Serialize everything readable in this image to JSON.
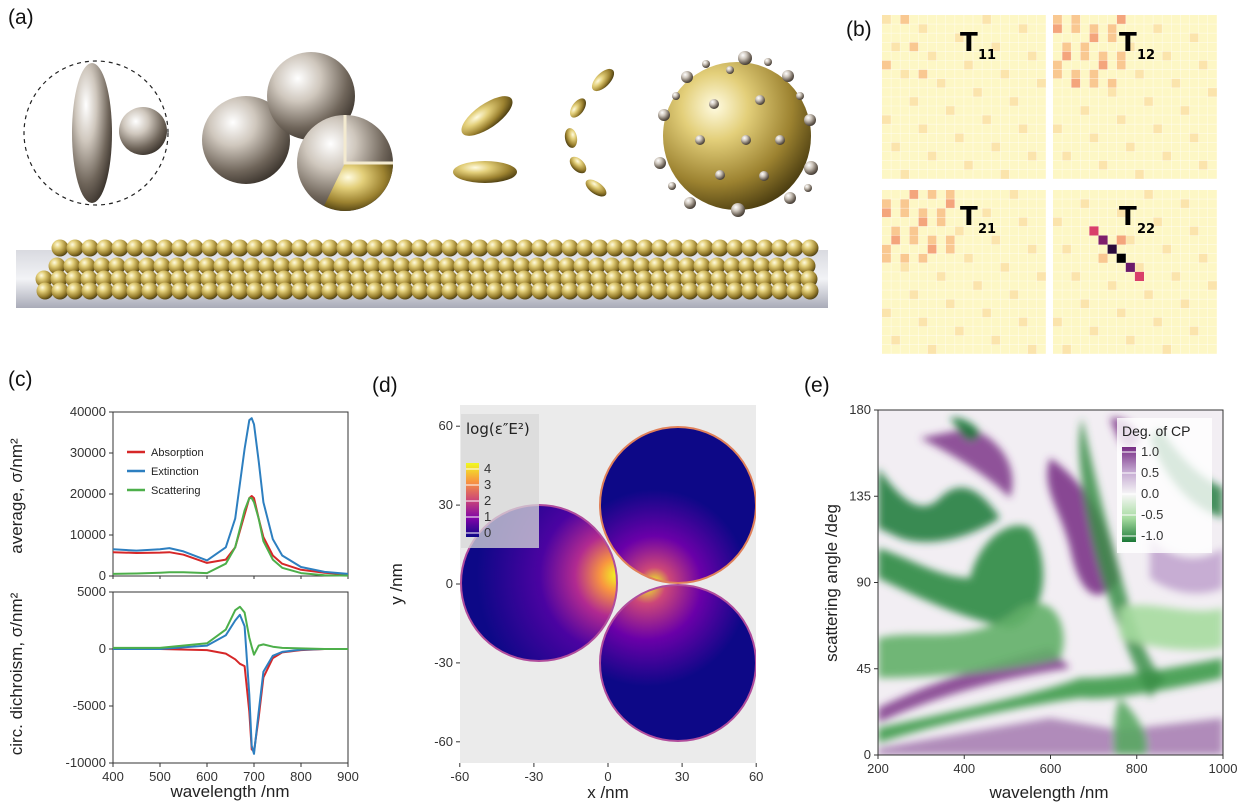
{
  "panels": {
    "a": "(a)",
    "b": "(b)",
    "c": "(c)",
    "d": "(d)",
    "e": "(e)"
  },
  "panel_b": {
    "labels": [
      {
        "main": "T",
        "sub": "11"
      },
      {
        "main": "T",
        "sub": "12"
      },
      {
        "main": "T",
        "sub": "21"
      },
      {
        "main": "T",
        "sub": "22"
      }
    ]
  },
  "chart_data": [
    {
      "type": "line",
      "ylabel": "average, σ/nm²",
      "x": [
        400,
        450,
        500,
        520,
        550,
        600,
        640,
        660,
        680,
        690,
        695,
        700,
        710,
        720,
        740,
        760,
        800,
        850,
        900
      ],
      "series": [
        {
          "name": "Absorption",
          "color": "#d62728",
          "values": [
            5800,
            5600,
            5700,
            5800,
            5200,
            3200,
            4000,
            7000,
            15000,
            19000,
            19500,
            19000,
            14000,
            9500,
            5000,
            3000,
            1500,
            800,
            400
          ]
        },
        {
          "name": "Extinction",
          "color": "#2d7fc0",
          "values": [
            6500,
            6200,
            6500,
            6800,
            6000,
            3800,
            7000,
            14000,
            31000,
            38000,
            38500,
            37000,
            28000,
            18000,
            9000,
            5000,
            2200,
            1000,
            500
          ]
        },
        {
          "name": "Scattering",
          "color": "#4daf4a",
          "values": [
            500,
            600,
            800,
            900,
            900,
            700,
            3000,
            7000,
            16000,
            19000,
            19000,
            18000,
            14000,
            8500,
            4000,
            2000,
            700,
            200,
            100
          ]
        }
      ],
      "ylim": [
        0,
        40000
      ],
      "yticks": [
        "0",
        "10000",
        "20000",
        "30000",
        "40000"
      ],
      "legend": "top-left"
    },
    {
      "type": "line",
      "ylabel": "circ. dichroism,  σ/nm²",
      "xlabel": "wavelength /nm",
      "x": [
        400,
        500,
        600,
        640,
        660,
        670,
        680,
        690,
        695,
        700,
        710,
        720,
        740,
        760,
        800,
        850,
        900
      ],
      "series": [
        {
          "name": "Absorption",
          "color": "#d62728",
          "values": [
            0,
            0,
            -100,
            -400,
            -900,
            -1300,
            -1500,
            -5500,
            -8800,
            -9000,
            -6000,
            -2500,
            -800,
            -300,
            -100,
            0,
            0
          ]
        },
        {
          "name": "Extinction",
          "color": "#2d7fc0",
          "values": [
            0,
            0,
            300,
            1200,
            2500,
            3000,
            2000,
            -4000,
            -8500,
            -9200,
            -5500,
            -2000,
            -600,
            -250,
            -50,
            0,
            0
          ]
        },
        {
          "name": "Scattering",
          "color": "#4daf4a",
          "values": [
            100,
            100,
            500,
            1700,
            3400,
            3700,
            3200,
            1000,
            200,
            -500,
            300,
            400,
            200,
            100,
            50,
            0,
            0
          ]
        }
      ],
      "ylim": [
        -10000,
        5000
      ],
      "yticks": [
        "5000",
        "0",
        "-5000",
        "-10000"
      ],
      "xticks": [
        "400",
        "500",
        "600",
        "700",
        "800",
        "900"
      ]
    },
    {
      "type": "heatmap",
      "xlabel": "x /nm",
      "ylabel": "y /nm",
      "xticks": [
        "-60",
        "-30",
        "0",
        "30",
        "60"
      ],
      "yticks": [
        "60",
        "30",
        "0",
        "-30",
        "-60"
      ],
      "colorbar_title": "log(ε″E²)",
      "colorbar_ticks": [
        "4",
        "3",
        "2",
        "1",
        "0"
      ],
      "colorscale": [
        "#0d0887",
        "#7e03a8",
        "#cc4778",
        "#f89540",
        "#f0f921"
      ]
    },
    {
      "type": "heatmap",
      "xlabel": "wavelength /nm",
      "ylabel": "scattering angle /deg",
      "xticks": [
        "200",
        "400",
        "600",
        "800",
        "1000"
      ],
      "yticks": [
        "180",
        "135",
        "90",
        "45",
        "0"
      ],
      "colorbar_title": "Deg. of CP",
      "colorbar_ticks": [
        "1.0",
        "0.5",
        "0.0",
        "-0.5",
        "-1.0"
      ],
      "colorscale": [
        "#1b7837",
        "#a6dba0",
        "#f7f7f7",
        "#c2a5cf",
        "#762a83"
      ]
    }
  ]
}
